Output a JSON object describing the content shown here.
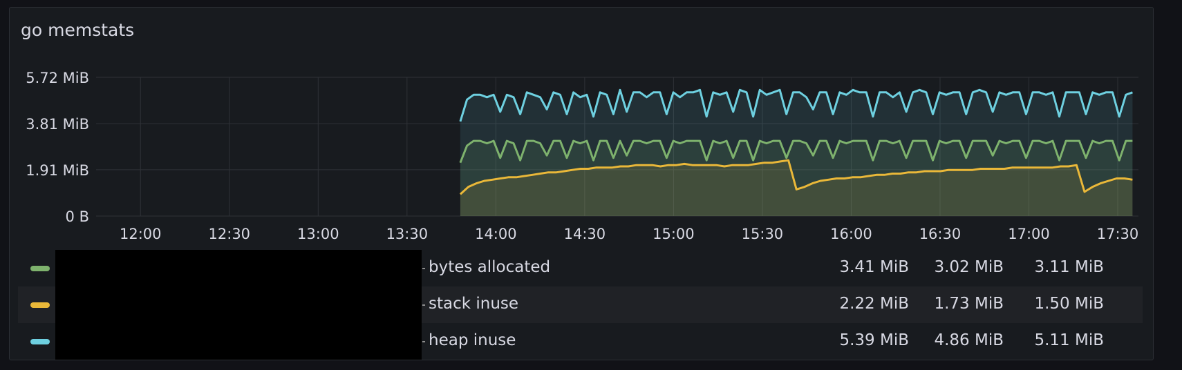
{
  "panel": {
    "title": "go memstats"
  },
  "chart_data": {
    "type": "area",
    "title": "go memstats",
    "xlabel": "",
    "ylabel": "",
    "ylim_mib": [
      0,
      5.72
    ],
    "y_ticks": [
      "0 B",
      "1.91 MiB",
      "3.81 MiB",
      "5.72 MiB"
    ],
    "y_tick_values_mib": [
      0,
      1.91,
      3.81,
      5.72
    ],
    "x_ticks": [
      "12:00",
      "12:30",
      "13:00",
      "13:30",
      "14:00",
      "14:30",
      "15:00",
      "15:30",
      "16:00",
      "16:30",
      "17:00",
      "17:30"
    ],
    "x_range": [
      "11:45",
      "17:37"
    ],
    "data_start": "13:48",
    "data_end": "17:35",
    "grid": true,
    "legend_placement": "bottom",
    "series": [
      {
        "name": "bytes allocated",
        "color": "#7eb26d",
        "base_mib": 3.1,
        "dip_mib": 2.3,
        "start_mib": 2.2,
        "points_mib": [
          2.2,
          2.9,
          3.1,
          3.1,
          3.0,
          3.1,
          2.4,
          3.1,
          3.0,
          2.3,
          3.1,
          3.1,
          3.0,
          2.5,
          3.1,
          3.1,
          2.4,
          3.1,
          3.0,
          3.1,
          2.3,
          3.1,
          3.1,
          2.4,
          3.1,
          2.5,
          3.1,
          3.1,
          3.0,
          3.1,
          3.1,
          2.4,
          3.1,
          3.0,
          3.1,
          3.1,
          3.1,
          2.3,
          3.1,
          3.0,
          3.1,
          2.4,
          3.1,
          3.1,
          2.3,
          3.1,
          3.0,
          3.1,
          3.1,
          2.4,
          3.1,
          3.1,
          3.0,
          2.5,
          3.1,
          3.1,
          2.4,
          3.1,
          3.0,
          3.1,
          3.1,
          3.1,
          2.3,
          3.1,
          3.1,
          3.0,
          3.1,
          2.4,
          3.1,
          3.1,
          3.1,
          2.3,
          3.1,
          3.0,
          3.1,
          3.1,
          2.4,
          3.1,
          3.1,
          3.1,
          2.5,
          3.1,
          3.0,
          3.1,
          3.1,
          2.4,
          3.1,
          3.1,
          3.0,
          3.1,
          2.3,
          3.1,
          3.1,
          3.1,
          2.4,
          3.1,
          3.0,
          3.1,
          3.1,
          2.3,
          3.1,
          3.1
        ],
        "current": "3.41 MiB",
        "stat2": "3.02 MiB",
        "stat3": "3.11 MiB"
      },
      {
        "name": "stack inuse",
        "color": "#eab839",
        "points_mib": [
          0.9,
          1.2,
          1.35,
          1.45,
          1.5,
          1.55,
          1.6,
          1.6,
          1.65,
          1.7,
          1.75,
          1.8,
          1.8,
          1.85,
          1.9,
          1.95,
          1.95,
          2.0,
          2.0,
          2.0,
          2.05,
          2.05,
          2.1,
          2.1,
          2.1,
          2.05,
          2.1,
          2.1,
          2.15,
          2.1,
          2.1,
          2.1,
          2.1,
          2.05,
          2.1,
          2.1,
          2.1,
          2.15,
          2.2,
          2.2,
          2.25,
          2.3,
          1.1,
          1.2,
          1.35,
          1.45,
          1.5,
          1.55,
          1.55,
          1.6,
          1.6,
          1.65,
          1.7,
          1.7,
          1.75,
          1.75,
          1.8,
          1.8,
          1.85,
          1.85,
          1.85,
          1.9,
          1.9,
          1.9,
          1.9,
          1.95,
          1.95,
          1.95,
          1.95,
          2.0,
          2.0,
          2.0,
          2.0,
          2.0,
          2.0,
          2.05,
          2.05,
          2.1,
          1.0,
          1.2,
          1.35,
          1.45,
          1.55,
          1.55,
          1.5
        ],
        "current": "2.22 MiB",
        "stat2": "1.73 MiB",
        "stat3": "1.50 MiB"
      },
      {
        "name": "heap inuse",
        "color": "#6ed0e0",
        "points_mib": [
          3.9,
          4.8,
          5.0,
          5.0,
          4.9,
          5.0,
          4.3,
          5.0,
          4.9,
          4.2,
          5.1,
          5.0,
          4.9,
          4.4,
          5.1,
          5.0,
          4.2,
          5.1,
          4.9,
          5.0,
          4.1,
          5.1,
          5.0,
          4.2,
          5.2,
          4.3,
          5.1,
          5.1,
          4.9,
          5.1,
          5.1,
          4.2,
          5.1,
          4.9,
          5.1,
          5.1,
          5.2,
          4.1,
          5.1,
          5.0,
          5.1,
          4.3,
          5.2,
          5.1,
          4.1,
          5.2,
          5.0,
          5.1,
          5.2,
          4.2,
          5.1,
          5.1,
          4.9,
          4.4,
          5.1,
          5.1,
          4.2,
          5.1,
          5.0,
          5.2,
          5.1,
          5.1,
          4.1,
          5.1,
          5.1,
          4.9,
          5.1,
          4.3,
          5.1,
          5.2,
          5.1,
          4.2,
          5.1,
          5.0,
          5.1,
          5.1,
          4.2,
          5.1,
          5.2,
          5.1,
          4.3,
          5.1,
          5.0,
          5.1,
          5.1,
          4.2,
          5.1,
          5.1,
          5.0,
          5.1,
          4.1,
          5.1,
          5.1,
          5.1,
          4.2,
          5.1,
          5.0,
          5.1,
          5.1,
          4.1,
          5.0,
          5.1
        ],
        "current": "5.39 MiB",
        "stat2": "4.86 MiB",
        "stat3": "5.11 MiB"
      }
    ]
  }
}
